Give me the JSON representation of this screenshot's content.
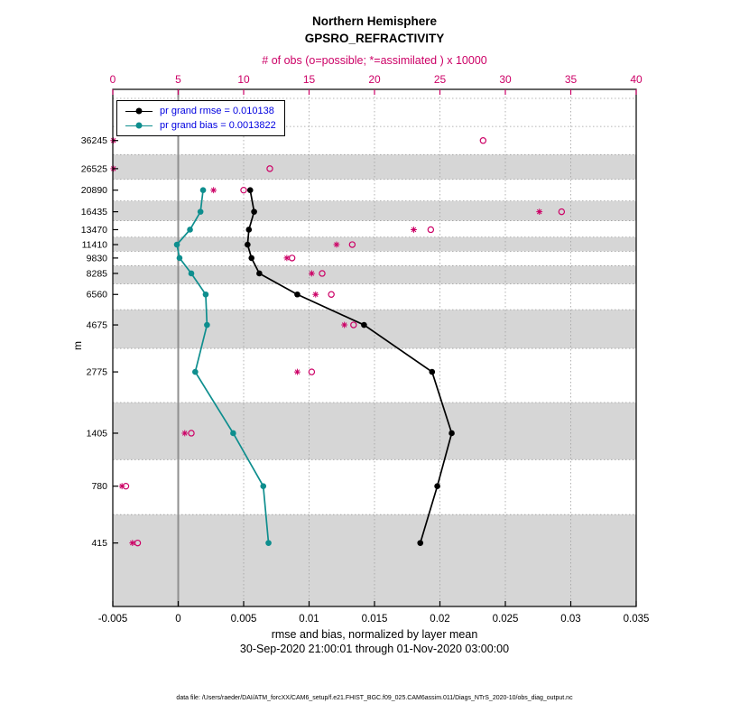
{
  "header": {
    "title_line1": "Northern Hemisphere",
    "title_line2": "GPSRO_REFRACTIVITY",
    "obs_axis_title": "# of obs (o=possible; *=assimilated ) x 10000"
  },
  "legend": {
    "rmse_label": "pr grand rmse = 0.010138",
    "bias_label": "pr grand bias = 0.0013822"
  },
  "footer": {
    "xlabel_line1": "rmse and bias, normalized by layer mean",
    "xlabel_line2": "30-Sep-2020 21:00:01 through 01-Nov-2020 03:00:00",
    "datafile": "data file: /Users/raeder/DAI/ATM_forcXX/CAM6_setup/f.e21.FHIST_BGC.f09_025.CAM6assim.011/Diags_NTrS_2020-10/obs_diag_output.nc"
  },
  "colors": {
    "obs": "#cc0066",
    "rmse": "#000000",
    "bias": "#0e8e8e",
    "legend_text": "#0000e0",
    "band": "#d6d6d6",
    "grid": "#9e9e9e",
    "zero_line": "#909090",
    "axis": "#000000"
  },
  "chart_data": {
    "type": "line",
    "title": "Northern Hemisphere GPSRO_REFRACTIVITY",
    "ylabel": "m",
    "y_axis": {
      "scale": "log",
      "min": 205,
      "max": 64000,
      "tick_levels": [
        36245,
        26525,
        20890,
        16435,
        13470,
        11410,
        9830,
        8285,
        6560,
        4675,
        2775,
        1405,
        780,
        415
      ]
    },
    "x_bottom_axis": {
      "label": "rmse and bias, normalized by layer mean",
      "min": -0.005,
      "max": 0.035,
      "ticks": [
        -0.005,
        0,
        0.005,
        0.01,
        0.015,
        0.02,
        0.025,
        0.03,
        0.035
      ],
      "tick_labels": [
        "-0.005",
        "0",
        "0.005",
        "0.01",
        "0.015",
        "0.02",
        "0.025",
        "0.03",
        "0.035"
      ]
    },
    "x_top_axis": {
      "label": "# of obs (o=possible; *=assimilated ) x 10000",
      "min": 0,
      "max": 40,
      "ticks": [
        0,
        5,
        10,
        15,
        20,
        25,
        30,
        35,
        40
      ]
    },
    "levels": [
      36245,
      26525,
      20890,
      16435,
      13470,
      11410,
      9830,
      8285,
      6560,
      4675,
      2775,
      1405,
      780,
      415
    ],
    "series": [
      {
        "name": "pr grand rmse",
        "summary_value": 0.010138,
        "axis": "bottom",
        "marker": "filled-circle",
        "values": [
          null,
          null,
          0.0055,
          0.0058,
          0.0054,
          0.0053,
          0.0056,
          0.0062,
          0.0091,
          0.0142,
          0.0194,
          0.0209,
          0.0198,
          0.0185
        ]
      },
      {
        "name": "pr grand bias",
        "summary_value": 0.0013822,
        "axis": "bottom",
        "marker": "filled-circle",
        "values": [
          null,
          null,
          0.0019,
          0.0017,
          0.0009,
          -0.0001,
          0.0001,
          0.001,
          0.0021,
          0.0022,
          0.0013,
          0.0042,
          0.0065,
          0.0069
        ]
      },
      {
        "name": "obs possible x10000",
        "axis": "top",
        "marker": "o",
        "values": [
          28.3,
          12.0,
          10.0,
          34.3,
          24.3,
          18.3,
          13.7,
          16.0,
          16.7,
          18.4,
          15.2,
          6.0,
          1.0,
          1.9
        ]
      },
      {
        "name": "obs assimilated x10000",
        "axis": "top",
        "marker": "*",
        "values": [
          0.05,
          0.05,
          7.7,
          32.6,
          23.0,
          17.1,
          13.3,
          15.2,
          15.5,
          17.7,
          14.1,
          5.5,
          0.7,
          1.5
        ]
      }
    ],
    "shaded_levels": [
      26525,
      16435,
      11410,
      8285,
      4675,
      1405,
      415
    ],
    "zero_line_x": 0,
    "legend_position": "top-left",
    "grid": "dotted"
  }
}
